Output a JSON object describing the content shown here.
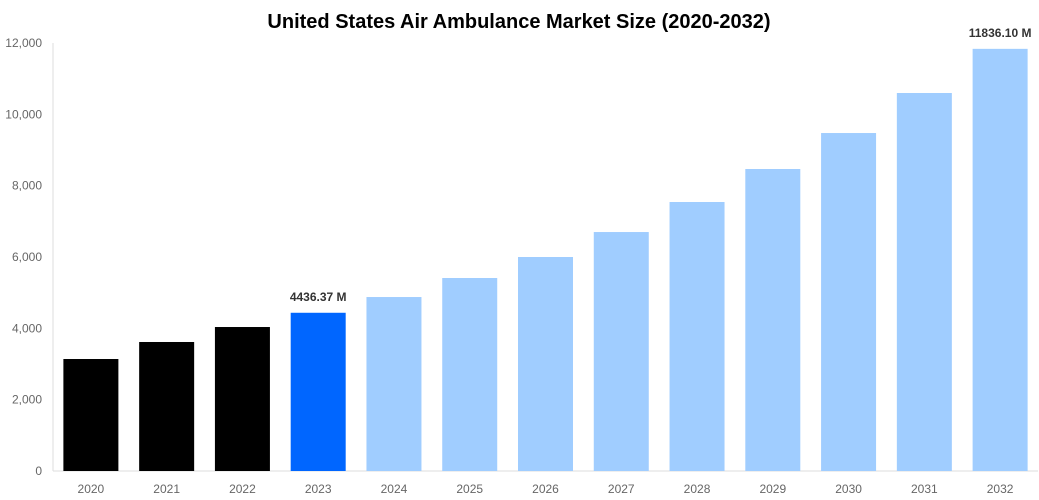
{
  "chart_data": {
    "type": "bar",
    "title": "United States Air Ambulance Market Size (2020-2032)",
    "xlabel": "",
    "ylabel": "",
    "ylim": [
      0,
      12000
    ],
    "yticks": [
      0,
      2000,
      4000,
      6000,
      8000,
      10000,
      12000
    ],
    "ytick_labels": [
      "0",
      "2,000",
      "4,000",
      "6,000",
      "8,000",
      "10,000",
      "12,000"
    ],
    "grid": false,
    "categories": [
      "2020",
      "2021",
      "2022",
      "2023",
      "2024",
      "2025",
      "2026",
      "2027",
      "2028",
      "2029",
      "2030",
      "2031",
      "2032"
    ],
    "values": [
      3140,
      3617,
      4037,
      4436.37,
      4878,
      5411,
      6000,
      6700,
      7542,
      8467,
      9476,
      10598,
      11836.1
    ],
    "bar_colors": [
      "#000000",
      "#000000",
      "#000000",
      "#0066ff",
      "#a0cdff",
      "#a0cdff",
      "#a0cdff",
      "#a0cdff",
      "#a0cdff",
      "#a0cdff",
      "#a0cdff",
      "#a0cdff",
      "#a0cdff"
    ],
    "data_labels": {
      "3": "4436.37 M",
      "12": "11836.10 M"
    }
  }
}
